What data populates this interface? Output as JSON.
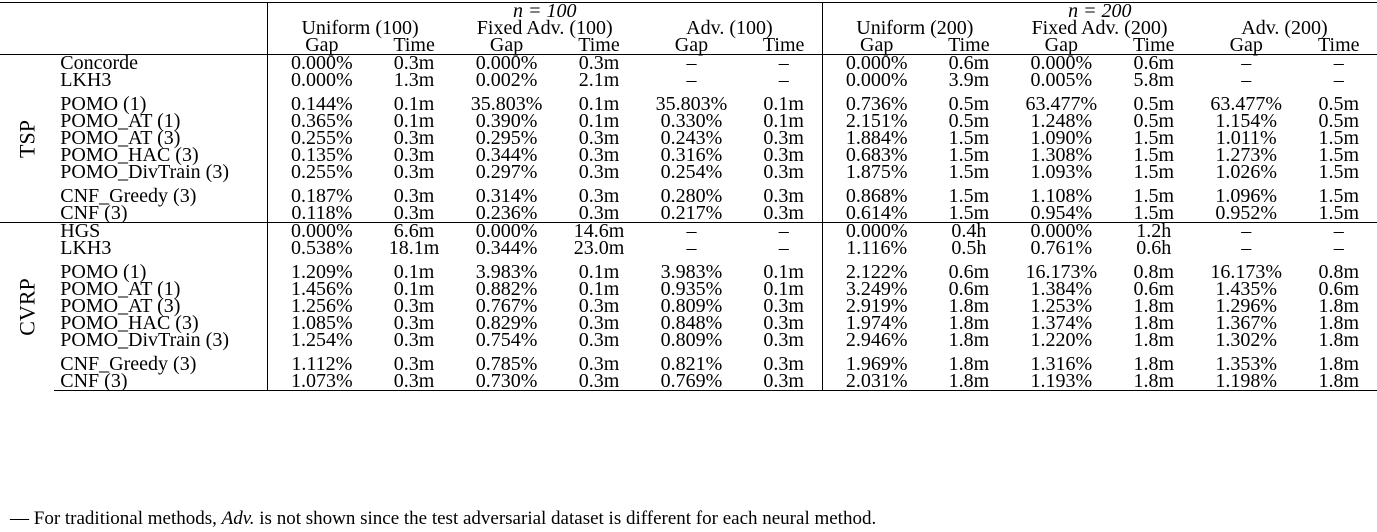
{
  "header": {
    "n100": "n = 100",
    "n200": "n = 200",
    "groups": [
      "Uniform (100)",
      "Fixed Adv. (100)",
      "Adv. (100)",
      "Uniform (200)",
      "Fixed Adv. (200)",
      "Adv. (200)"
    ],
    "gap": "Gap",
    "time": "Time"
  },
  "sections": [
    {
      "domain": "TSP",
      "blocks": [
        [
          {
            "method": "Concorde",
            "cells": [
              "0.000%",
              "0.3m",
              "0.000%",
              "0.3m",
              "–",
              "–",
              "0.000%",
              "0.6m",
              "0.000%",
              "0.6m",
              "–",
              "–"
            ]
          },
          {
            "method": "LKH3",
            "cells": [
              "0.000%",
              "1.3m",
              "0.002%",
              "2.1m",
              "–",
              "–",
              "0.000%",
              "3.9m",
              "0.005%",
              "5.8m",
              "–",
              "–"
            ]
          }
        ],
        [
          {
            "method": "POMO (1)",
            "cells": [
              "0.144%",
              "0.1m",
              "35.803%",
              "0.1m",
              "35.803%",
              "0.1m",
              "0.736%",
              "0.5m",
              "63.477%",
              "0.5m",
              "63.477%",
              "0.5m"
            ]
          },
          {
            "method": "POMO_AT (1)",
            "cells": [
              "0.365%",
              "0.1m",
              "0.390%",
              "0.1m",
              "0.330%",
              "0.1m",
              "2.151%",
              "0.5m",
              "1.248%",
              "0.5m",
              "1.154%",
              "0.5m"
            ]
          },
          {
            "method": "POMO_AT (3)",
            "cells": [
              "0.255%",
              "0.3m",
              "0.295%",
              "0.3m",
              "0.243%",
              "0.3m",
              "1.884%",
              "1.5m",
              "1.090%",
              "1.5m",
              "1.011%",
              "1.5m"
            ]
          },
          {
            "method": "POMO_HAC (3)",
            "cells": [
              "0.135%",
              "0.3m",
              "0.344%",
              "0.3m",
              "0.316%",
              "0.3m",
              "0.683%",
              "1.5m",
              "1.308%",
              "1.5m",
              "1.273%",
              "1.5m"
            ]
          },
          {
            "method": "POMO_DivTrain (3)",
            "cells": [
              "0.255%",
              "0.3m",
              "0.297%",
              "0.3m",
              "0.254%",
              "0.3m",
              "1.875%",
              "1.5m",
              "1.093%",
              "1.5m",
              "1.026%",
              "1.5m"
            ]
          }
        ],
        [
          {
            "method": "CNF_Greedy (3)",
            "cells": [
              "0.187%",
              "0.3m",
              "0.314%",
              "0.3m",
              "0.280%",
              "0.3m",
              "0.868%",
              "1.5m",
              "1.108%",
              "1.5m",
              "1.096%",
              "1.5m"
            ]
          },
          {
            "method": "CNF (3)",
            "cells": [
              "0.118%",
              "0.3m",
              "0.236%",
              "0.3m",
              "0.217%",
              "0.3m",
              "0.614%",
              "1.5m",
              "0.954%",
              "1.5m",
              "0.952%",
              "1.5m"
            ],
            "bold": [
              0,
              2,
              4,
              6,
              8,
              10
            ]
          }
        ]
      ]
    },
    {
      "domain": "CVRP",
      "blocks": [
        [
          {
            "method": "HGS",
            "cells": [
              "0.000%",
              "6.6m",
              "0.000%",
              "14.6m",
              "–",
              "–",
              "0.000%",
              "0.4h",
              "0.000%",
              "1.2h",
              "–",
              "–"
            ]
          },
          {
            "method": "LKH3",
            "cells": [
              "0.538%",
              "18.1m",
              "0.344%",
              "23.0m",
              "–",
              "–",
              "1.116%",
              "0.5h",
              "0.761%",
              "0.6h",
              "–",
              "–"
            ]
          }
        ],
        [
          {
            "method": "POMO (1)",
            "cells": [
              "1.209%",
              "0.1m",
              "3.983%",
              "0.1m",
              "3.983%",
              "0.1m",
              "2.122%",
              "0.6m",
              "16.173%",
              "0.8m",
              "16.173%",
              "0.8m"
            ]
          },
          {
            "method": "POMO_AT (1)",
            "cells": [
              "1.456%",
              "0.1m",
              "0.882%",
              "0.1m",
              "0.935%",
              "0.1m",
              "3.249%",
              "0.6m",
              "1.384%",
              "0.6m",
              "1.435%",
              "0.6m"
            ]
          },
          {
            "method": "POMO_AT (3)",
            "cells": [
              "1.256%",
              "0.3m",
              "0.767%",
              "0.3m",
              "0.809%",
              "0.3m",
              "2.919%",
              "1.8m",
              "1.253%",
              "1.8m",
              "1.296%",
              "1.8m"
            ]
          },
          {
            "method": "POMO_HAC (3)",
            "cells": [
              "1.085%",
              "0.3m",
              "0.829%",
              "0.3m",
              "0.848%",
              "0.3m",
              "1.974%",
              "1.8m",
              "1.374%",
              "1.8m",
              "1.367%",
              "1.8m"
            ]
          },
          {
            "method": "POMO_DivTrain (3)",
            "cells": [
              "1.254%",
              "0.3m",
              "0.754%",
              "0.3m",
              "0.809%",
              "0.3m",
              "2.946%",
              "1.8m",
              "1.220%",
              "1.8m",
              "1.302%",
              "1.8m"
            ]
          }
        ],
        [
          {
            "method": "CNF_Greedy (3)",
            "cells": [
              "1.112%",
              "0.3m",
              "0.785%",
              "0.3m",
              "0.821%",
              "0.3m",
              "1.969%",
              "1.8m",
              "1.316%",
              "1.8m",
              "1.353%",
              "1.8m"
            ],
            "bold": [
              6
            ]
          },
          {
            "method": "CNF (3)",
            "cells": [
              "1.073%",
              "0.3m",
              "0.730%",
              "0.3m",
              "0.769%",
              "0.3m",
              "2.031%",
              "1.8m",
              "1.193%",
              "1.8m",
              "1.198%",
              "1.8m"
            ],
            "bold": [
              0,
              2,
              4,
              8,
              10
            ]
          }
        ]
      ]
    }
  ],
  "footnote": {
    "mark": "—",
    "pre": " For traditional methods, ",
    "em": "Adv.",
    "post": " is not shown since the test adversarial dataset is different for each neural method."
  }
}
